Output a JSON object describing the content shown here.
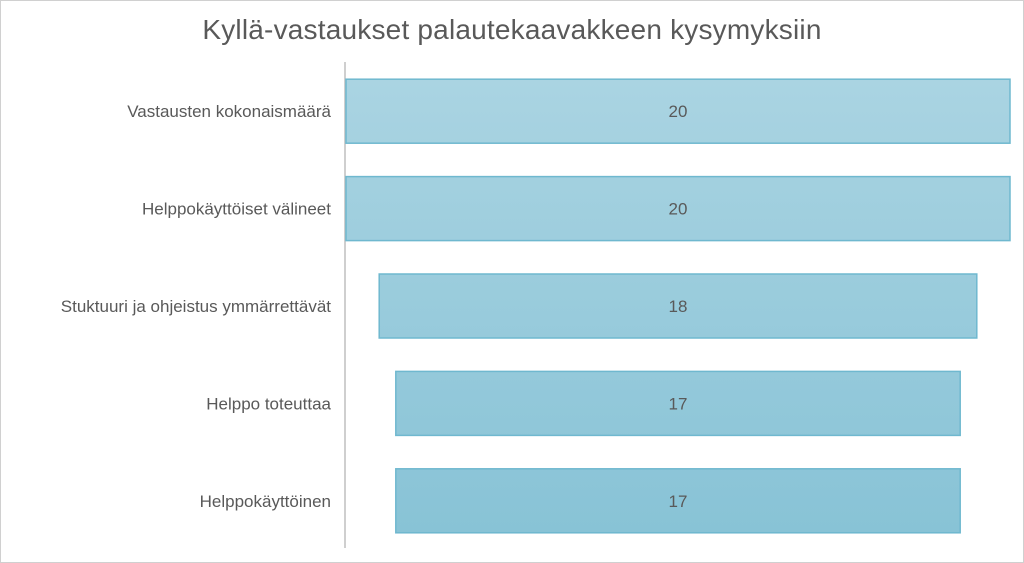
{
  "chart_data": {
    "type": "bar",
    "orientation": "horizontal-centered",
    "title": "Kyllä-vastaukset palautekaavakkeen kysymyksiin",
    "xlabel": "",
    "ylabel": "",
    "categories": [
      "Vastausten kokonaismäärä",
      "Helppokäyttöiset välineet",
      "Stuktuuri ja ohjeistus ymmärrettävät",
      "Helppo toteuttaa",
      "Helppokäyttöinen"
    ],
    "values": [
      20,
      20,
      18,
      17,
      17
    ],
    "xlim": [
      0,
      20
    ],
    "grid": false,
    "legend": "none",
    "colors": {
      "bar_top": "#aad4e2",
      "bar_bottom": "#88c3d6",
      "bar_stroke": "#6fb8cf",
      "axis": "#bfbfbf",
      "text": "#595959"
    }
  }
}
